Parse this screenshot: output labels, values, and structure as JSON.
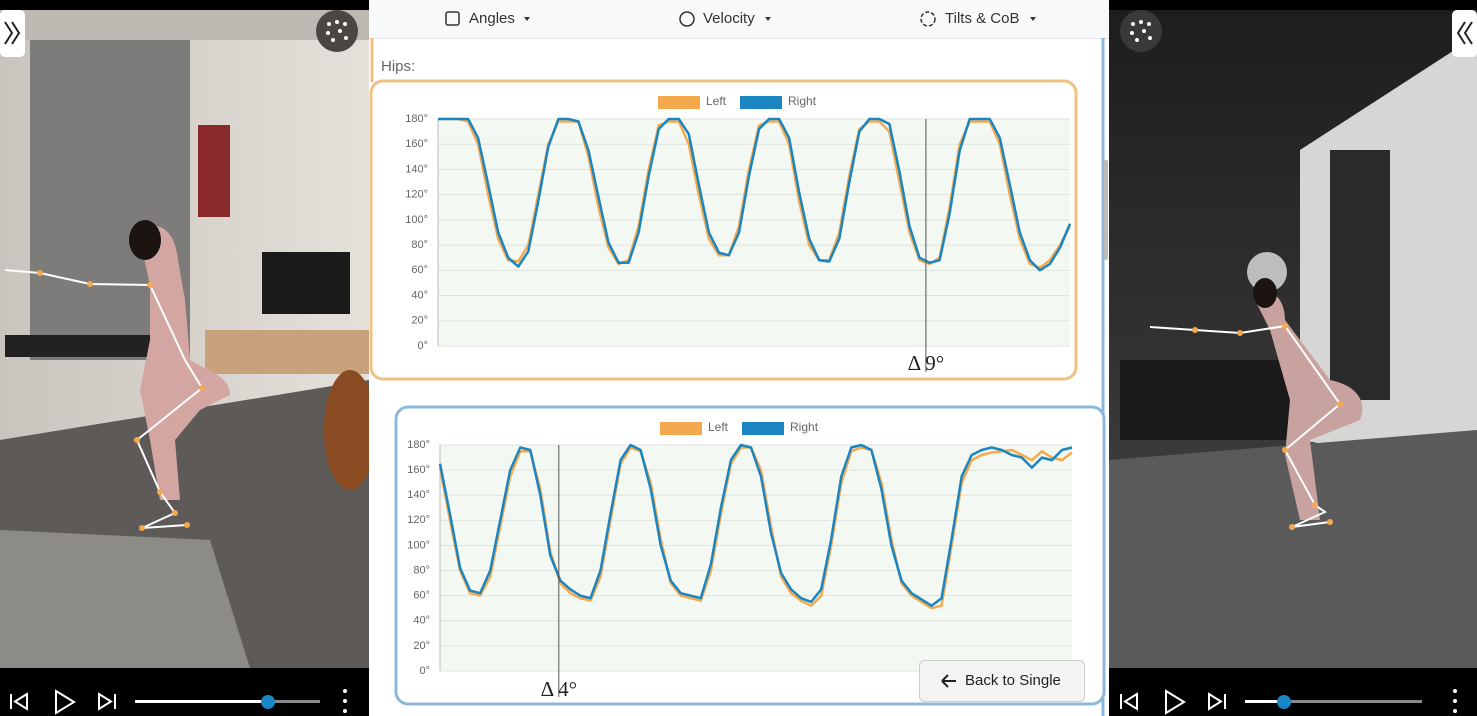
{
  "nav": {
    "items": [
      "Angles",
      "Velocity",
      "Tilts & CoB"
    ]
  },
  "section_label": "Hips:",
  "back_button": "Back to Single",
  "chart_data": [
    {
      "type": "line",
      "annotation": "Δ 9°",
      "ylim": [
        0,
        180
      ],
      "yticks": [
        {
          "value": 0,
          "label": "0°"
        },
        {
          "value": 20,
          "label": "20°"
        },
        {
          "value": 40,
          "label": "40°"
        },
        {
          "value": 60,
          "label": "60°"
        },
        {
          "value": 80,
          "label": "80°"
        },
        {
          "value": 100,
          "label": "100°"
        },
        {
          "value": 120,
          "label": "120°"
        },
        {
          "value": 140,
          "label": "140°"
        },
        {
          "value": 160,
          "label": "160°"
        },
        {
          "value": 180,
          "label": "180°"
        }
      ],
      "grid": true,
      "series": [
        {
          "name": "Left",
          "color": "#f5a94e",
          "values": [
            180,
            180,
            180,
            178,
            160,
            120,
            85,
            68,
            67,
            80,
            120,
            160,
            178,
            178,
            178,
            150,
            110,
            78,
            65,
            68,
            95,
            140,
            175,
            178,
            178,
            160,
            120,
            85,
            72,
            72,
            95,
            140,
            175,
            178,
            178,
            160,
            115,
            80,
            68,
            68,
            90,
            135,
            172,
            178,
            178,
            170,
            130,
            90,
            68,
            65,
            70,
            110,
            160,
            178,
            178,
            178,
            160,
            120,
            85,
            65,
            62,
            68,
            80,
            95
          ]
        },
        {
          "name": "Right",
          "color": "#1a85c0",
          "values": [
            180,
            180,
            180,
            180,
            165,
            128,
            90,
            70,
            63,
            75,
            115,
            158,
            180,
            180,
            178,
            155,
            118,
            82,
            66,
            66,
            90,
            135,
            172,
            180,
            180,
            168,
            128,
            90,
            74,
            72,
            90,
            135,
            172,
            180,
            180,
            165,
            122,
            85,
            68,
            67,
            85,
            130,
            170,
            180,
            180,
            176,
            138,
            95,
            70,
            66,
            68,
            105,
            155,
            180,
            180,
            180,
            165,
            128,
            90,
            68,
            60,
            65,
            78,
            97
          ]
        }
      ]
    },
    {
      "type": "line",
      "annotation": "Δ 4°",
      "ylim": [
        0,
        180
      ],
      "yticks": [
        {
          "value": 0,
          "label": "0°"
        },
        {
          "value": 20,
          "label": "20°"
        },
        {
          "value": 40,
          "label": "40°"
        },
        {
          "value": 60,
          "label": "60°"
        },
        {
          "value": 80,
          "label": "80°"
        },
        {
          "value": 100,
          "label": "100°"
        },
        {
          "value": 120,
          "label": "120°"
        },
        {
          "value": 140,
          "label": "140°"
        },
        {
          "value": 160,
          "label": "160°"
        },
        {
          "value": 180,
          "label": "180°"
        }
      ],
      "grid": true,
      "series": [
        {
          "name": "Left",
          "color": "#f5a94e",
          "values": [
            162,
            120,
            80,
            62,
            60,
            75,
            115,
            155,
            175,
            175,
            145,
            95,
            70,
            62,
            58,
            56,
            75,
            120,
            165,
            178,
            175,
            150,
            105,
            70,
            60,
            58,
            56,
            80,
            125,
            165,
            178,
            178,
            160,
            115,
            75,
            62,
            56,
            52,
            60,
            100,
            150,
            175,
            178,
            176,
            150,
            105,
            70,
            60,
            55,
            50,
            52,
            100,
            150,
            168,
            172,
            174,
            175,
            176,
            172,
            168,
            175,
            170,
            168,
            174
          ]
        },
        {
          "name": "Right",
          "color": "#1a85c0",
          "values": [
            165,
            125,
            82,
            64,
            62,
            80,
            120,
            160,
            178,
            176,
            140,
            92,
            72,
            65,
            60,
            58,
            80,
            125,
            168,
            180,
            176,
            145,
            100,
            72,
            62,
            60,
            58,
            85,
            130,
            168,
            180,
            178,
            155,
            110,
            78,
            65,
            58,
            55,
            65,
            105,
            155,
            178,
            180,
            176,
            145,
            100,
            72,
            62,
            57,
            52,
            58,
            105,
            155,
            172,
            176,
            178,
            176,
            172,
            170,
            162,
            170,
            168,
            176,
            178
          ]
        }
      ]
    }
  ]
}
